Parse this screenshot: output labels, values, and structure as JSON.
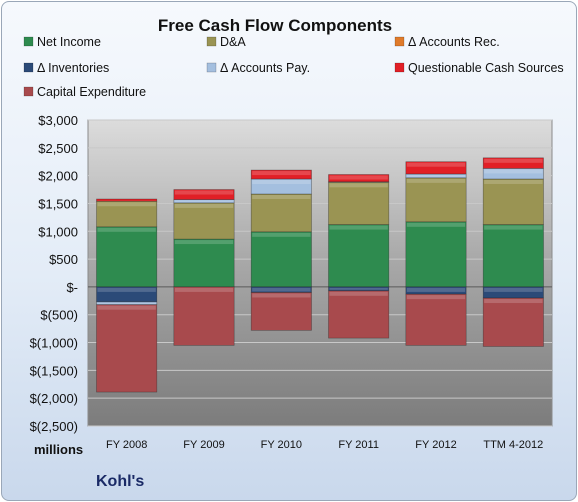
{
  "chart_data": {
    "type": "bar",
    "stacked": true,
    "title": "Free Cash Flow Components",
    "categories": [
      "FY 2008",
      "FY 2009",
      "FY 2010",
      "FY 2011",
      "FY 2012",
      "TTM 4-2012"
    ],
    "ylim": [
      -2500,
      3000
    ],
    "yticks": [
      3000,
      2500,
      2000,
      1500,
      1000,
      500,
      0,
      -500,
      -1000,
      -1500,
      -2000,
      -2500
    ],
    "ytick_labels": [
      "$3,000",
      "$2,500",
      "$2,000",
      "$1,500",
      "$1,000",
      "$500",
      "$-",
      "$(500)",
      "$(1,000)",
      "$(1,500)",
      "$(2,000)",
      "$(2,500)"
    ],
    "grid": true,
    "legend_position": "top",
    "units_label": "millions",
    "series": [
      {
        "name": "Net Income",
        "color": "#2e8b4f",
        "values": [
          1080,
          860,
          990,
          1120,
          1170,
          1120
        ]
      },
      {
        "name": "D&A",
        "color": "#9a9453",
        "values": [
          460,
          650,
          680,
          760,
          790,
          820
        ]
      },
      {
        "name": "Δ Accounts Rec.",
        "color": "#e07b2a",
        "values": [
          0,
          0,
          0,
          0,
          0,
          0
        ]
      },
      {
        "name": "Δ Inventories",
        "color": "#2b4a78",
        "values": [
          -270,
          0,
          -100,
          -70,
          -130,
          -200
        ]
      },
      {
        "name": "Δ Accounts Pay.",
        "color": "#a4bfdf",
        "values": [
          -50,
          60,
          270,
          10,
          70,
          190
        ]
      },
      {
        "name": "Questionable Cash Sources",
        "color": "#e11f26",
        "values": [
          40,
          180,
          160,
          130,
          220,
          190
        ]
      },
      {
        "name": "Capital Expenditure",
        "color": "#a84a4d",
        "values": [
          -1570,
          -1050,
          -680,
          -850,
          -920,
          -870
        ]
      }
    ]
  },
  "footer": {
    "brand": "Kohl's"
  }
}
